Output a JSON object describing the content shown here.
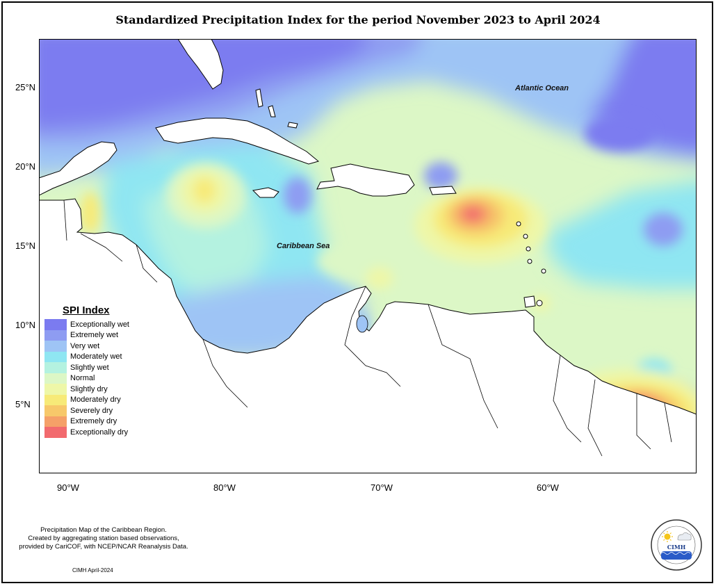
{
  "title": "Standardized Precipitation Index for the period November 2023 to April 2024",
  "lat_labels": [
    "25°N",
    "20°N",
    "15°N",
    "10°N",
    "5°N"
  ],
  "lon_labels": [
    "90°W",
    "80°W",
    "70°W",
    "60°W"
  ],
  "map_labels": {
    "atlantic": "Atlantic Ocean",
    "caribbean": "Caribbean Sea"
  },
  "legend": {
    "title": "SPI Index",
    "items": [
      {
        "label": "Exceptionally wet",
        "color": "#7b7bf0"
      },
      {
        "label": "Extremely wet",
        "color": "#8e9cf2"
      },
      {
        "label": "Very wet",
        "color": "#9ec4f5"
      },
      {
        "label": "Moderately wet",
        "color": "#8fe6f2"
      },
      {
        "label": "Slightly wet",
        "color": "#b4f2e0"
      },
      {
        "label": "Normal",
        "color": "#dcf7c6"
      },
      {
        "label": "Slightly dry",
        "color": "#eef7a8"
      },
      {
        "label": "Moderately dry",
        "color": "#f7ea78"
      },
      {
        "label": "Severely dry",
        "color": "#f7c86a"
      },
      {
        "label": "Extremely dry",
        "color": "#f5a068"
      },
      {
        "label": "Exceptionally dry",
        "color": "#f26a6e"
      }
    ]
  },
  "footer": {
    "line1": "Precipitation Map of the Caribbean Region.",
    "line2": "Created by aggregating station based observations,",
    "line3": "provided by CariCOF, with NCEP/NCAR Reanalysis Data.",
    "date": "CIMH April-2024"
  },
  "logo": {
    "text": "CIMH"
  }
}
